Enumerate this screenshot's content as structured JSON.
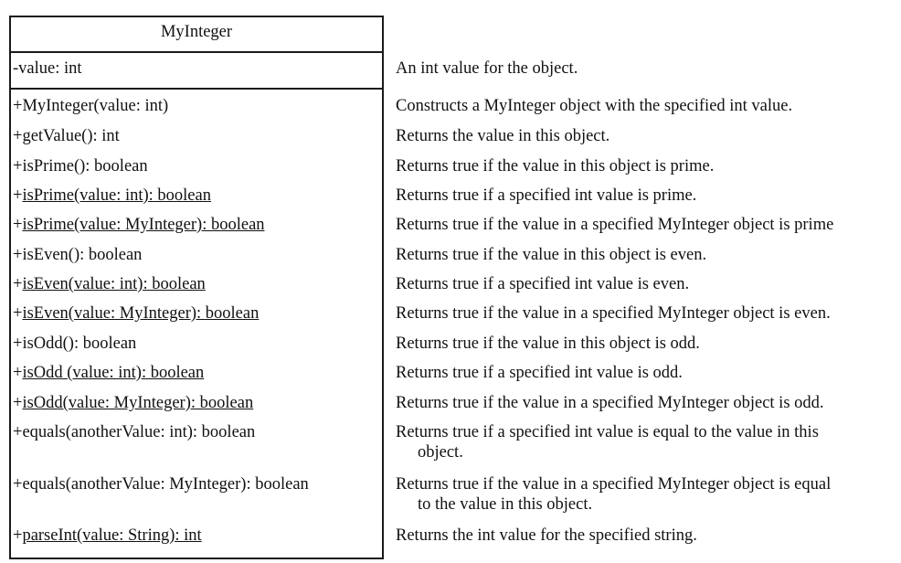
{
  "class_name": "MyInteger",
  "field": {
    "signature": "-value: int",
    "description": "An int value for the object."
  },
  "methods": [
    {
      "vis": "+",
      "sig": "MyInteger(value: int)",
      "static": false,
      "desc": "Constructs a MyInteger object with the specified int value.",
      "desc2": ""
    },
    {
      "vis": "+",
      "sig": "getValue(): int",
      "static": false,
      "desc": "Returns the value in this object.",
      "desc2": ""
    },
    {
      "vis": "+",
      "sig": "isPrime(): boolean",
      "static": false,
      "desc": "Returns true if the value in this object is prime.",
      "desc2": ""
    },
    {
      "vis": "+",
      "sig": "isPrime(value: int): boolean",
      "static": true,
      "desc": "Returns true if a specified int value is prime.",
      "desc2": ""
    },
    {
      "vis": "+",
      "sig": "isPrime(value: MyInteger): boolean",
      "static": true,
      "desc": "Returns true if the value in a specified MyInteger object is prime",
      "desc2": ""
    },
    {
      "vis": "+",
      "sig": "isEven(): boolean",
      "static": false,
      "desc": "Returns true if the value in this object is even.",
      "desc2": ""
    },
    {
      "vis": "+",
      "sig": "isEven(value: int): boolean",
      "static": true,
      "desc": "Returns true if a specified int value is even.",
      "desc2": ""
    },
    {
      "vis": "+",
      "sig": "isEven(value: MyInteger): boolean",
      "static": true,
      "desc": "Returns true if the value in a specified MyInteger object is even.",
      "desc2": ""
    },
    {
      "vis": "+",
      "sig": "isOdd(): boolean",
      "static": false,
      "desc": "Returns true if the value in this object is odd.",
      "desc2": ""
    },
    {
      "vis": "+",
      "sig": "isOdd (value: int): boolean",
      "static": true,
      "desc": "Returns true if a specified int value is odd.",
      "desc2": ""
    },
    {
      "vis": "+",
      "sig": "isOdd(value: MyInteger): boolean",
      "static": true,
      "desc": "Returns true if the value in a specified MyInteger object is odd.",
      "desc2": ""
    },
    {
      "vis": "+",
      "sig": "equals(anotherValue: int): boolean",
      "static": false,
      "desc": "Returns true if a specified int value is equal to the value in this",
      "desc2": "object."
    },
    {
      "vis": "+",
      "sig": "equals(anotherValue: MyInteger):  boolean",
      "static": false,
      "desc": "Returns true if the value in a specified MyInteger object is equal",
      "desc2": "to the value in this object."
    },
    {
      "vis": "+",
      "sig": "parseInt(value: String):  int",
      "static": true,
      "desc": "Returns the int value for the specified string.",
      "desc2": ""
    }
  ]
}
